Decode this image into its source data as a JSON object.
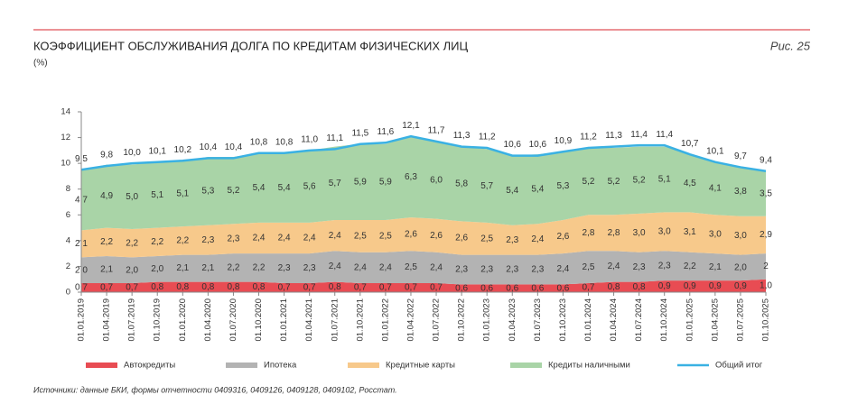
{
  "chart_data": {
    "type": "stacked_area",
    "title": "КОЭФФИЦИЕНТ ОБСЛУЖИВАНИЯ ДОЛГА ПО КРЕДИТАМ ФИЗИЧЕСКИХ ЛИЦ",
    "subtitle": "(%)",
    "figure_label": "Рис. 25",
    "source": "Источники: данные БКИ, формы отчетности 0409316, 0409126, 0409128, 0409102, Росстат.",
    "categories": [
      "01.01.2019",
      "01.04.2019",
      "01.07.2019",
      "01.10.2019",
      "01.01.2020",
      "01.04.2020",
      "01.07.2020",
      "01.10.2020",
      "01.01.2021",
      "01.04.2021",
      "01.07.2021",
      "01.10.2021",
      "01.01.2022",
      "01.04.2022",
      "01.07.2022",
      "01.10.2022",
      "01.01.2023",
      "01.04.2023",
      "01.07.2023",
      "01.10.2023",
      "01.01.2024",
      "01.04.2024",
      "01.07.2024",
      "01.10.2024",
      "01.01.2025",
      "01.04.2025",
      "01.07.2025",
      "01.10.2025"
    ],
    "ylim": [
      0,
      14
    ],
    "yticks": [
      0,
      2,
      4,
      6,
      8,
      10,
      12,
      14
    ],
    "grid": false,
    "legend": "bottom",
    "series": [
      {
        "name": "Автокредиты",
        "color": "#e84c53",
        "values": [
          0.7,
          0.7,
          0.7,
          0.8,
          0.8,
          0.8,
          0.8,
          0.8,
          0.7,
          0.7,
          0.8,
          0.7,
          0.7,
          0.7,
          0.7,
          0.6,
          0.6,
          0.6,
          0.6,
          0.6,
          0.7,
          0.8,
          0.8,
          0.9,
          0.9,
          0.9,
          0.9,
          1.0
        ],
        "value_labels": [
          "0,7",
          "0,7",
          "0,7",
          "0,8",
          "0,8",
          "0,8",
          "0,8",
          "0,8",
          "0,7",
          "0,7",
          "0,8",
          "0,7",
          "0,7",
          "0,7",
          "0,7",
          "0,6",
          "0,6",
          "0,6",
          "0,6",
          "0,6",
          "0,7",
          "0,8",
          "0,8",
          "0,9",
          "0,9",
          "0,9",
          "0,9",
          "1,0"
        ]
      },
      {
        "name": "Ипотека",
        "color": "#b3b3b3",
        "values": [
          2.0,
          2.1,
          2.0,
          2.0,
          2.1,
          2.1,
          2.2,
          2.2,
          2.3,
          2.3,
          2.4,
          2.4,
          2.4,
          2.5,
          2.4,
          2.3,
          2.3,
          2.3,
          2.3,
          2.4,
          2.5,
          2.4,
          2.3,
          2.3,
          2.2,
          2.1,
          2.0,
          2
        ],
        "value_labels": [
          "2,0",
          "2,1",
          "2,0",
          "2,0",
          "2,1",
          "2,1",
          "2,2",
          "2,2",
          "2,3",
          "2,3",
          "2,4",
          "2,4",
          "2,4",
          "2,5",
          "2,4",
          "2,3",
          "2,3",
          "2,3",
          "2,3",
          "2,4",
          "2,5",
          "2,4",
          "2,3",
          "2,3",
          "2,2",
          "2,1",
          "2,0",
          "2"
        ]
      },
      {
        "name": "Кредитные карты",
        "color": "#f7c98b",
        "values": [
          2.1,
          2.2,
          2.2,
          2.2,
          2.2,
          2.3,
          2.3,
          2.4,
          2.4,
          2.4,
          2.4,
          2.5,
          2.5,
          2.6,
          2.6,
          2.6,
          2.5,
          2.3,
          2.4,
          2.6,
          2.8,
          2.8,
          3.0,
          3.0,
          3.1,
          3.0,
          3.0,
          2.9
        ],
        "value_labels": [
          "2,1",
          "2,2",
          "2,2",
          "2,2",
          "2,2",
          "2,3",
          "2,3",
          "2,4",
          "2,4",
          "2,4",
          "2,4",
          "2,5",
          "2,5",
          "2,6",
          "2,6",
          "2,6",
          "2,5",
          "2,3",
          "2,4",
          "2,6",
          "2,8",
          "2,8",
          "3,0",
          "3,0",
          "3,1",
          "3,0",
          "3,0",
          "2,9"
        ]
      },
      {
        "name": "Кредиты наличными",
        "color": "#a9d4a7",
        "values": [
          4.7,
          4.9,
          5.0,
          5.1,
          5.1,
          5.3,
          5.2,
          5.4,
          5.4,
          5.6,
          5.7,
          5.9,
          5.9,
          6.3,
          6.0,
          5.8,
          5.7,
          5.4,
          5.4,
          5.3,
          5.2,
          5.2,
          5.2,
          5.1,
          4.5,
          4.1,
          3.8,
          3.5
        ],
        "value_labels": [
          "4,7",
          "4,9",
          "5,0",
          "5,1",
          "5,1",
          "5,3",
          "5,2",
          "5,4",
          "5,4",
          "5,6",
          "5,7",
          "5,9",
          "5,9",
          "6,3",
          "6,0",
          "5,8",
          "5,7",
          "5,4",
          "5,4",
          "5,3",
          "5,2",
          "5,2",
          "5,2",
          "5,1",
          "4,5",
          "4,1",
          "3,8",
          "3,5"
        ]
      },
      {
        "name": "Общий итог",
        "color": "#3ab1e3",
        "kind": "line",
        "values": [
          9.5,
          9.8,
          10.0,
          10.1,
          10.2,
          10.4,
          10.4,
          10.8,
          10.8,
          11.0,
          11.1,
          11.5,
          11.6,
          12.1,
          11.7,
          11.3,
          11.2,
          10.6,
          10.6,
          10.9,
          11.2,
          11.3,
          11.4,
          11.4,
          10.7,
          10.1,
          9.7,
          9.4
        ],
        "value_labels": [
          "9,5",
          "9,8",
          "10,0",
          "10,1",
          "10,2",
          "10,4",
          "10,4",
          "10,8",
          "10,8",
          "11,0",
          "11,1",
          "11,5",
          "11,6",
          "12,1",
          "11,7",
          "11,3",
          "11,2",
          "10,6",
          "10,6",
          "10,9",
          "11,2",
          "11,3",
          "11,4",
          "11,4",
          "10,7",
          "10,1",
          "9,7",
          "9,4"
        ]
      }
    ]
  }
}
